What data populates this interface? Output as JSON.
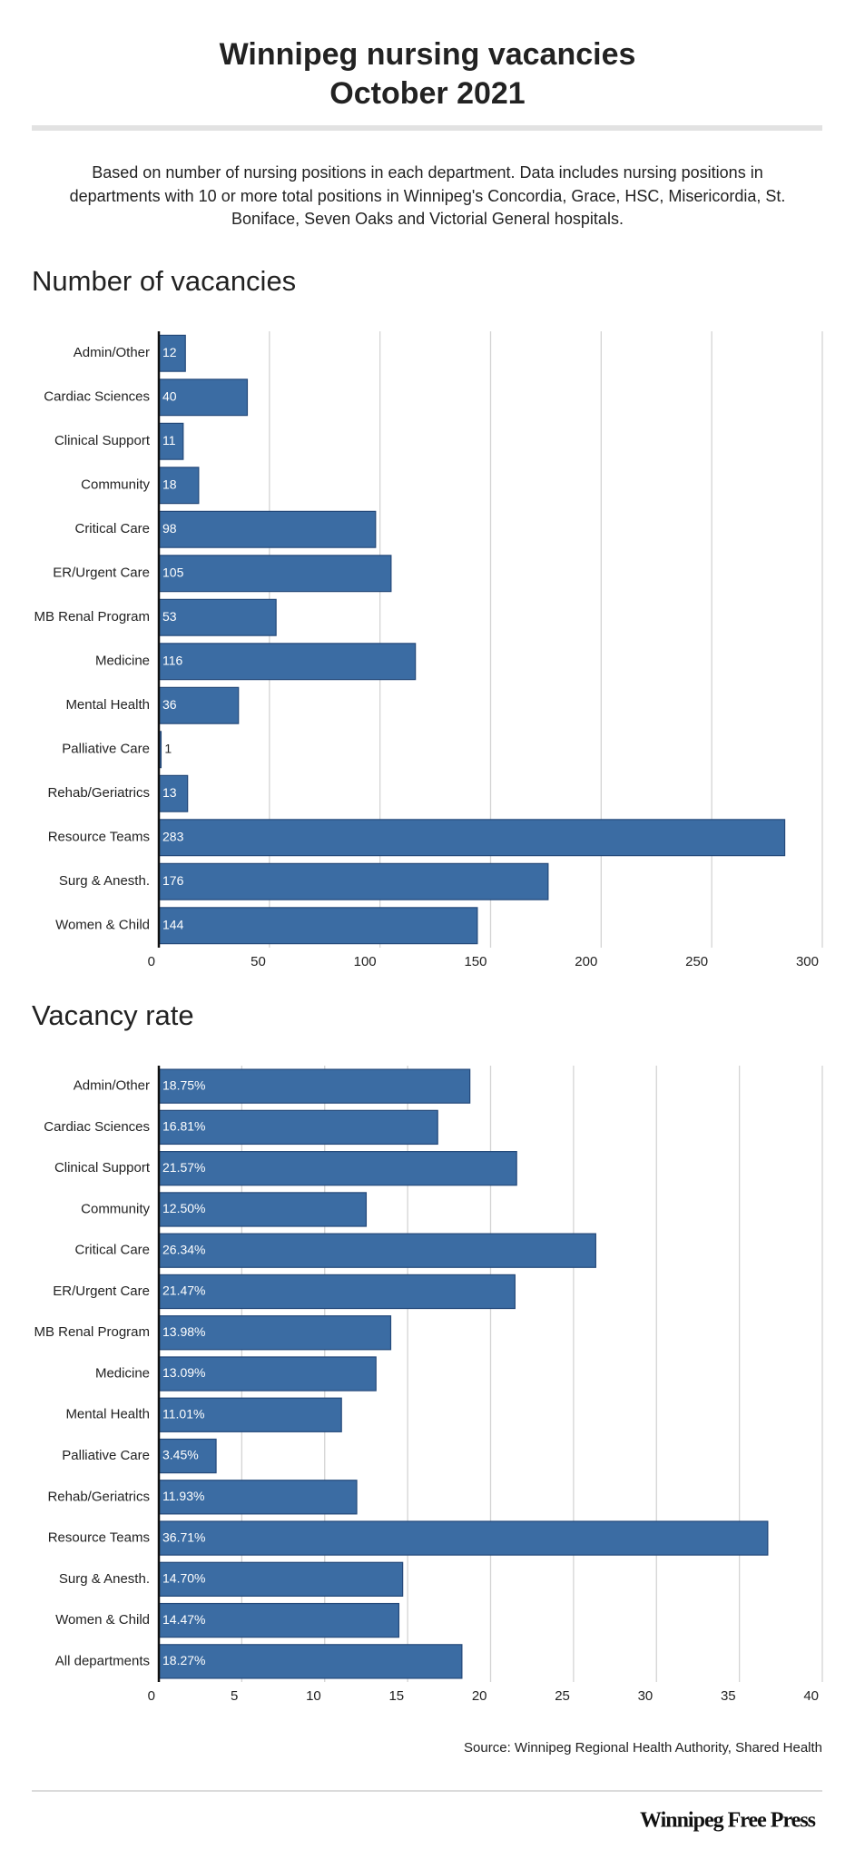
{
  "header": {
    "title": "Winnipeg nursing vacancies",
    "date": "October 2021",
    "subtitle": "Based on number of nursing positions in each department. Data includes nursing positions in departments with 10 or more total positions in Winnipeg's Concordia, Grace, HSC, Misericordia, St. Boniface, Seven Oaks and Victorial General hospitals."
  },
  "chart_data": [
    {
      "type": "bar",
      "orientation": "horizontal",
      "title": "Number of vacancies",
      "categories": [
        "Admin/Other",
        "Cardiac Sciences",
        "Clinical Support",
        "Community",
        "Critical Care",
        "ER/Urgent Care",
        "MB Renal Program",
        "Medicine",
        "Mental Health",
        "Palliative Care",
        "Rehab/Geriatrics",
        "Resource Teams",
        "Surg & Anesth.",
        "Women & Child"
      ],
      "values": [
        12,
        40,
        11,
        18,
        98,
        105,
        53,
        116,
        36,
        1,
        13,
        283,
        176,
        144
      ],
      "color": "#3b6ca3",
      "xlim": [
        0,
        300
      ],
      "xticks": [
        0,
        50,
        100,
        150,
        200,
        250,
        300
      ],
      "grid": true
    },
    {
      "type": "bar",
      "orientation": "horizontal",
      "title": "Vacancy rate",
      "categories": [
        "Admin/Other",
        "Cardiac Sciences",
        "Clinical Support",
        "Community",
        "Critical Care",
        "ER/Urgent Care",
        "MB Renal Program",
        "Medicine",
        "Mental Health",
        "Palliative Care",
        "Rehab/Geriatrics",
        "Resource Teams",
        "Surg & Anesth.",
        "Women & Child",
        "All departments"
      ],
      "values": [
        18.75,
        16.81,
        21.57,
        12.5,
        26.34,
        21.47,
        13.98,
        13.09,
        11.01,
        3.45,
        11.93,
        36.71,
        14.7,
        14.47,
        18.27
      ],
      "value_labels": [
        "18.75%",
        "16.81%",
        "21.57%",
        "12.50%",
        "26.34%",
        "21.47%",
        "13.98%",
        "13.09%",
        "11.01%",
        "3.45%",
        "11.93%",
        "36.71%",
        "14.70%",
        "14.47%",
        "18.27%"
      ],
      "color": "#3b6ca3",
      "xlim": [
        0,
        40
      ],
      "xticks": [
        0,
        5,
        10,
        15,
        20,
        25,
        30,
        35,
        40
      ],
      "grid": true
    }
  ],
  "footer": {
    "source": "Source: Winnipeg Regional Health Authority, Shared Health",
    "logo": "Winnipeg Free Press"
  }
}
